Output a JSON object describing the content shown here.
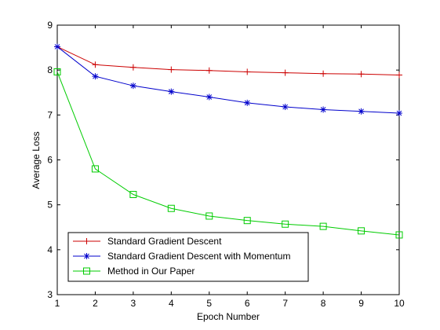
{
  "chart_data": {
    "type": "line",
    "title": "",
    "xlabel": "Epoch Number",
    "ylabel": "Average Loss",
    "xlim": [
      1,
      10
    ],
    "ylim": [
      3,
      9
    ],
    "x_ticks": [
      "1",
      "2",
      "3",
      "4",
      "5",
      "6",
      "7",
      "8",
      "9",
      "10"
    ],
    "y_ticks": [
      "3",
      "4",
      "5",
      "6",
      "7",
      "8",
      "9"
    ],
    "grid": false,
    "legend_position": "bottom-left",
    "x": [
      1,
      2,
      3,
      4,
      5,
      6,
      7,
      8,
      9,
      10
    ],
    "series": [
      {
        "name": "Standard Gradient Descent",
        "color": "#cc0000",
        "marker": "plus",
        "values": [
          8.52,
          8.12,
          8.06,
          8.01,
          7.99,
          7.96,
          7.94,
          7.92,
          7.91,
          7.89
        ]
      },
      {
        "name": "Standard Gradient Descent with Momentum",
        "color": "#0000cc",
        "marker": "asterisk",
        "values": [
          8.52,
          7.86,
          7.65,
          7.52,
          7.4,
          7.27,
          7.18,
          7.12,
          7.08,
          7.04
        ]
      },
      {
        "name": "Method in Our Paper",
        "color": "#00cc00",
        "marker": "square",
        "values": [
          7.96,
          5.8,
          5.23,
          4.92,
          4.75,
          4.65,
          4.57,
          4.52,
          4.42,
          4.33
        ]
      }
    ]
  }
}
